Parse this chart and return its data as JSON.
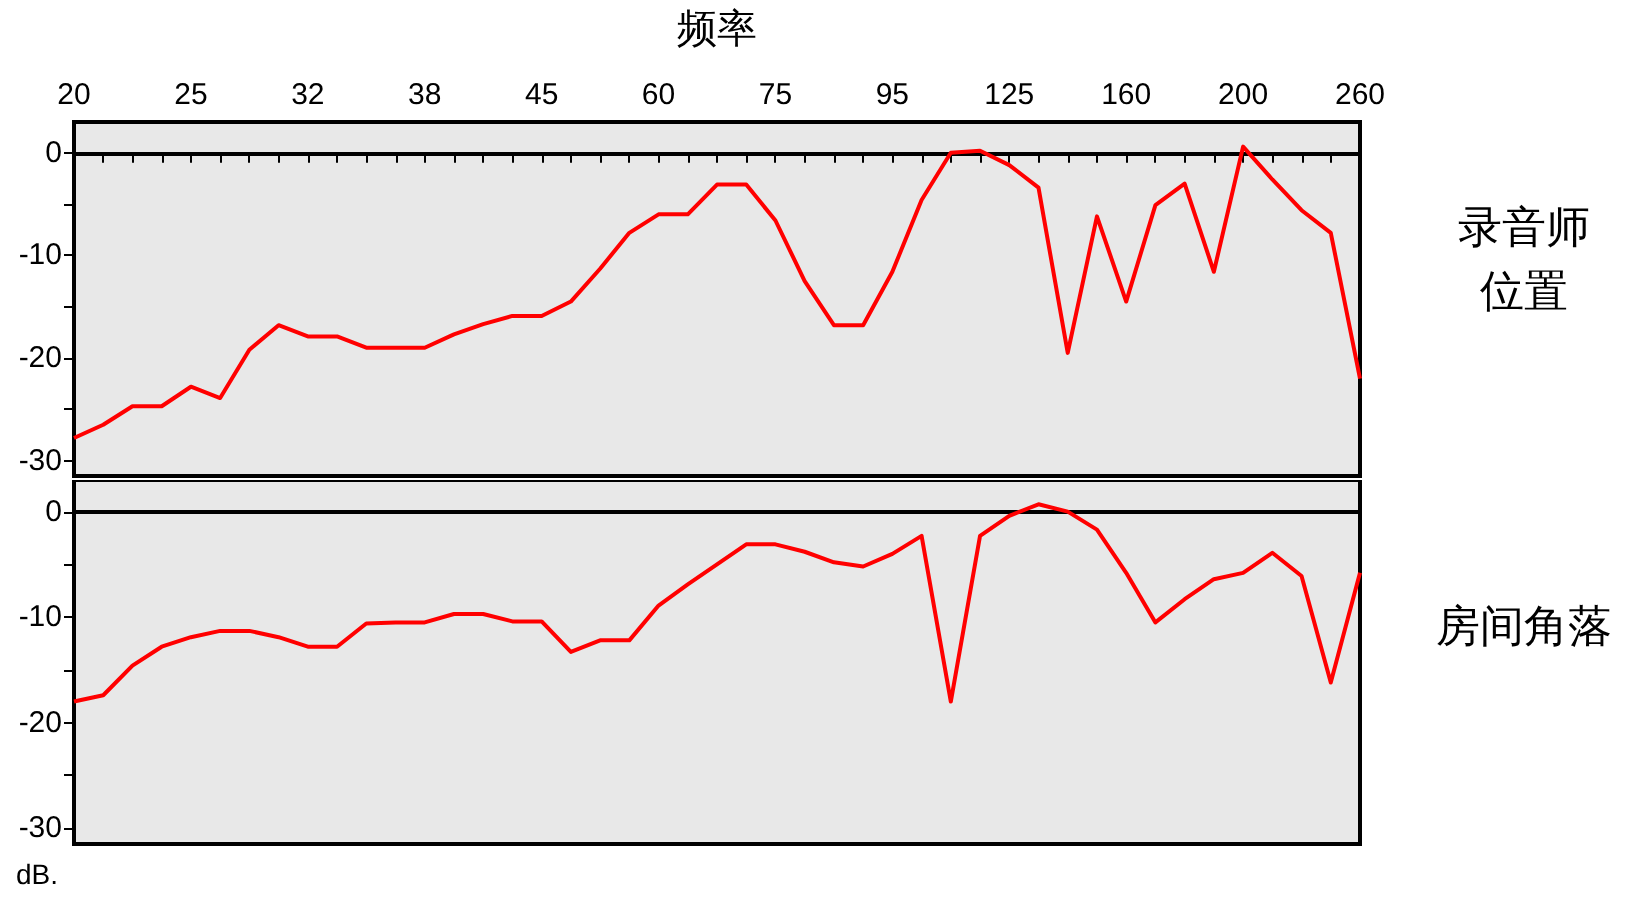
{
  "chart_data": [
    {
      "type": "line",
      "xlabel": "频率",
      "marker": "none",
      "categories": [
        "20",
        null,
        null,
        null,
        "25",
        null,
        null,
        null,
        "32",
        null,
        null,
        null,
        "38",
        null,
        null,
        null,
        "45",
        null,
        null,
        null,
        "60",
        null,
        null,
        null,
        "75",
        null,
        null,
        null,
        "95",
        null,
        null,
        null,
        "125",
        null,
        null,
        null,
        "160",
        null,
        null,
        null,
        "200",
        null,
        null,
        null,
        "260"
      ],
      "series": [
        {
          "name": "录音师位置",
          "color": "#ff0000",
          "values": [
            -27.8,
            -26.5,
            -24.7,
            -24.7,
            -22.8,
            -23.9,
            -19.2,
            -16.8,
            -17.9,
            -17.9,
            -19,
            -19,
            -19,
            -17.7,
            -16.7,
            -15.9,
            -15.9,
            -14.5,
            -11.3,
            -7.8,
            -6,
            -6,
            -3.1,
            -3.1,
            -6.6,
            -12.5,
            -16.8,
            -16.8,
            -11.6,
            -4.6,
            0,
            0.2,
            -1.2,
            -3.4,
            -19.5,
            -6.2,
            -14.5,
            -5.1,
            -3,
            -11.6,
            0.6,
            -2.6,
            -5.6,
            -7.8,
            -22
          ]
        }
      ],
      "ylim": [
        -31.5,
        3
      ],
      "yticks": [
        {
          "value": -30,
          "label": "-30"
        },
        {
          "value": -25,
          "label": null
        },
        {
          "value": -20,
          "label": "-20"
        },
        {
          "value": -15,
          "label": null
        },
        {
          "value": -10,
          "label": "-10"
        },
        {
          "value": -5,
          "label": null
        },
        0
      ]
    },
    {
      "type": "line",
      "marker": "none",
      "tick_labels": "y",
      "annotations": [
        "dB."
      ],
      "categories": [
        "20",
        null,
        null,
        null,
        "25",
        null,
        null,
        null,
        "32",
        null,
        null,
        null,
        "38",
        null,
        null,
        null,
        "45",
        null,
        null,
        null,
        "60",
        null,
        null,
        null,
        "75",
        null,
        null,
        null,
        "95",
        null,
        null,
        null,
        "125",
        null,
        null,
        null,
        "160",
        null,
        null,
        null,
        "200",
        null,
        null,
        null,
        "260"
      ],
      "series": [
        {
          "name": "房间角落",
          "color": "#ff0000",
          "values": [
            -18,
            -17.4,
            -14.6,
            -12.8,
            -11.9,
            -11.3,
            -11.3,
            -11.9,
            -12.8,
            -12.8,
            -10.6,
            -10.5,
            -10.5,
            -9.7,
            -9.7,
            -10.4,
            -10.4,
            -13.3,
            -12.2,
            -12.2,
            -8.9,
            -6.9,
            -5,
            -3.1,
            -3.1,
            -3.8,
            -4.8,
            -5.2,
            -4,
            -2.3,
            -18,
            -2.3,
            -0.4,
            0.7,
            0,
            -1.7,
            -5.8,
            -10.5,
            -8.3,
            -6.4,
            -5.8,
            -3.9,
            -6.1,
            -16.2,
            -5.8
          ]
        }
      ],
      "ylim": [
        -31.5,
        3
      ],
      "yticks": [
        {
          "value": -30,
          "label": "-30"
        },
        {
          "value": -25,
          "label": null
        },
        {
          "value": -20,
          "label": "-20"
        },
        {
          "value": -15,
          "label": null
        },
        {
          "value": -10,
          "label": "-10"
        },
        {
          "value": -5,
          "label": null
        },
        0
      ]
    }
  ]
}
